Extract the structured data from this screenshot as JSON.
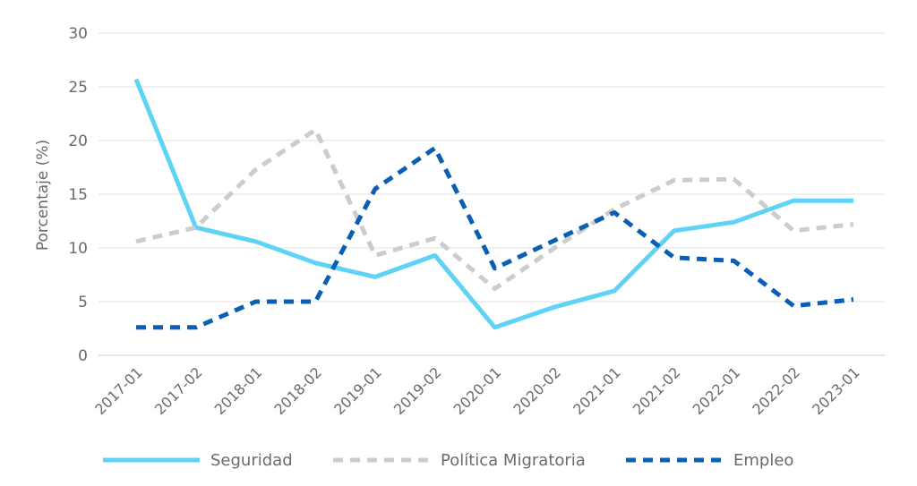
{
  "chart_data": {
    "type": "line",
    "title": "",
    "xlabel": "",
    "ylabel": "Porcentaje (%)",
    "ylim": [
      0,
      30
    ],
    "yticks": [
      0,
      5,
      10,
      15,
      20,
      25,
      30
    ],
    "grid": true,
    "legend_position": "bottom",
    "categories": [
      "2017-01",
      "2017-02",
      "2018-01",
      "2018-02",
      "2019-01",
      "2019-02",
      "2020-01",
      "2020-02",
      "2021-01",
      "2021-02",
      "2022-01",
      "2022-02",
      "2023-01"
    ],
    "series": [
      {
        "name": "Seguridad",
        "color": "#5fd3f5",
        "style": "solid",
        "values": [
          25.7,
          11.9,
          10.6,
          8.6,
          7.3,
          9.3,
          2.6,
          4.5,
          6.0,
          11.6,
          12.4,
          14.4,
          14.4
        ]
      },
      {
        "name": "Política Migratoria",
        "color": "#cccccc",
        "style": "dashed",
        "values": [
          10.6,
          11.9,
          17.3,
          21.0,
          9.3,
          10.9,
          6.2,
          10.0,
          13.6,
          16.3,
          16.4,
          11.6,
          12.2
        ]
      },
      {
        "name": "Empleo",
        "color": "#0a5fb4",
        "style": "dashed",
        "values": [
          2.6,
          2.6,
          5.0,
          5.0,
          15.5,
          19.3,
          8.1,
          10.7,
          13.3,
          9.1,
          8.8,
          4.6,
          5.2
        ]
      }
    ]
  }
}
